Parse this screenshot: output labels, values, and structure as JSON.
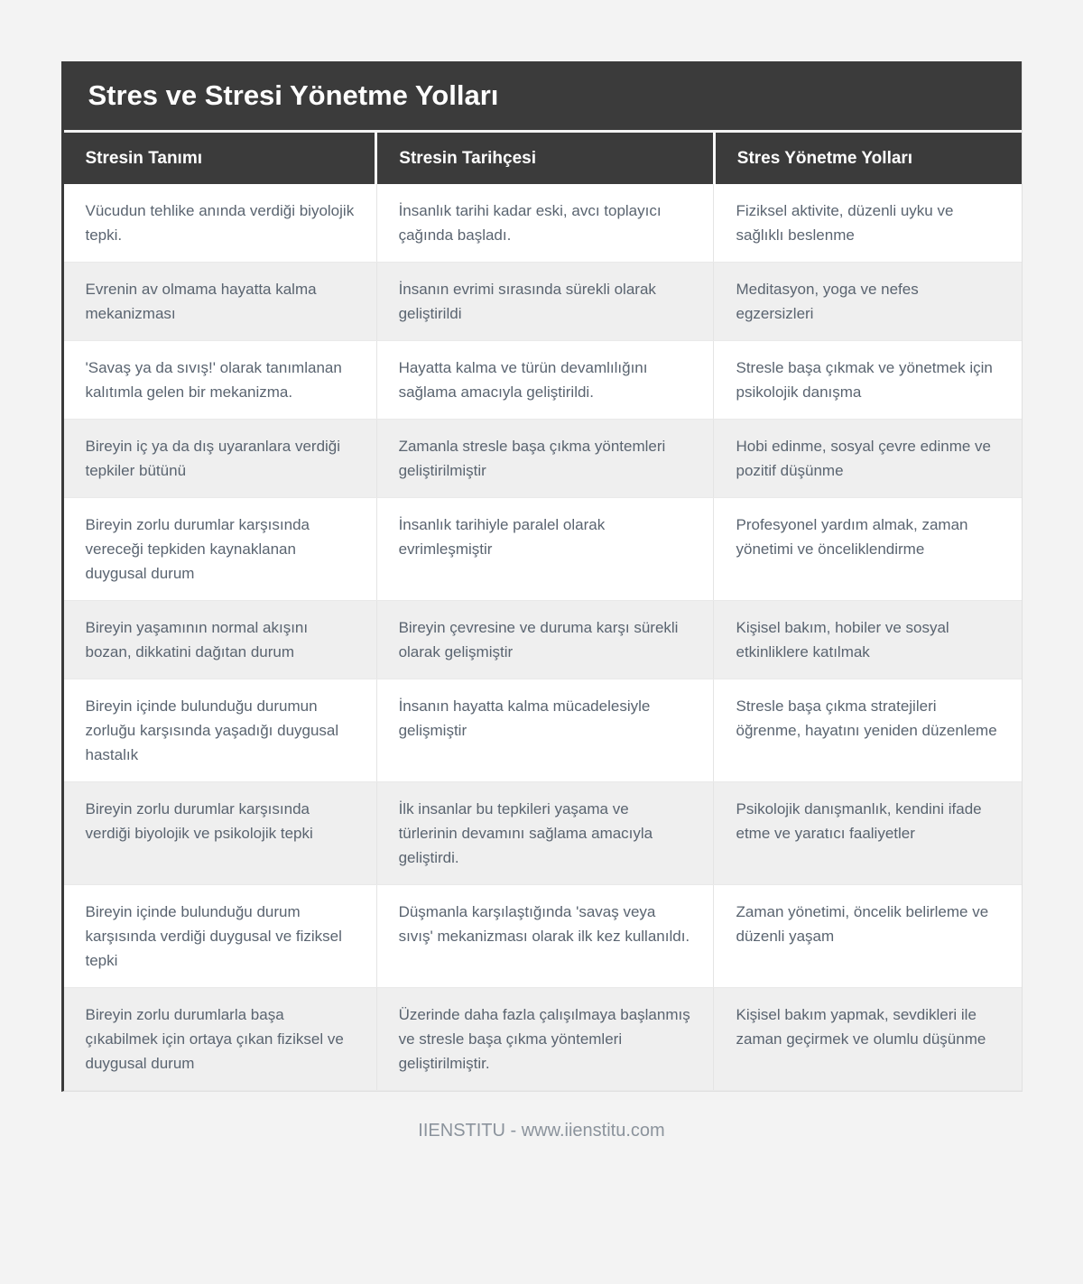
{
  "header": {
    "title": "Stres ve Stresi Yönetme Yolları"
  },
  "table": {
    "columns": [
      "Stresin Tanımı",
      "Stresin Tarihçesi",
      "Stres Yönetme Yolları"
    ],
    "rows": [
      [
        "Vücudun tehlike anında verdiği biyolojik tepki.",
        "İnsanlık tarihi kadar eski, avcı toplayıcı çağında başladı.",
        "Fiziksel aktivite, düzenli uyku ve sağlıklı beslenme"
      ],
      [
        "Evrenin av olmama hayatta kalma mekanizması",
        "İnsanın evrimi sırasında sürekli olarak geliştirildi",
        "Meditasyon, yoga ve nefes egzersizleri"
      ],
      [
        "'Savaş ya da sıvış!' olarak tanımlanan kalıtımla gelen bir mekanizma.",
        "Hayatta kalma ve türün devamlılığını sağlama amacıyla geliştirildi.",
        "Stresle başa çıkmak ve yönetmek için psikolojik danışma"
      ],
      [
        "Bireyin iç ya da dış uyaranlara verdiği tepkiler bütünü",
        "Zamanla stresle başa çıkma yöntemleri geliştirilmiştir",
        "Hobi edinme, sosyal çevre edinme ve pozitif düşünme"
      ],
      [
        "Bireyin zorlu durumlar karşısında vereceği tepkiden kaynaklanan duygusal durum",
        "İnsanlık tarihiyle paralel olarak evrimleşmiştir",
        "Profesyonel yardım almak, zaman yönetimi ve önceliklendirme"
      ],
      [
        "Bireyin yaşamının normal akışını bozan, dikkatini dağıtan durum",
        "Bireyin çevresine ve duruma karşı sürekli olarak gelişmiştir",
        "Kişisel bakım, hobiler ve sosyal etkinliklere katılmak"
      ],
      [
        "Bireyin içinde bulunduğu durumun zorluğu karşısında yaşadığı duygusal hastalık",
        "İnsanın hayatta kalma mücadelesiyle gelişmiştir",
        "Stresle başa çıkma stratejileri öğrenme, hayatını yeniden düzenleme"
      ],
      [
        "Bireyin zorlu durumlar karşısında verdiği biyolojik ve psikolojik tepki",
        "İlk insanlar bu tepkileri yaşama ve türlerinin devamını sağlama amacıyla geliştirdi.",
        "Psikolojik danışmanlık, kendini ifade etme ve yaratıcı faaliyetler"
      ],
      [
        "Bireyin içinde bulunduğu durum karşısında verdiği duygusal ve fiziksel tepki",
        "Düşmanla karşılaştığında 'savaş veya sıvış' mekanizması olarak ilk kez kullanıldı.",
        "Zaman yönetimi, öncelik belirleme ve düzenli yaşam"
      ],
      [
        "Bireyin zorlu durumlarla başa çıkabilmek için ortaya çıkan fiziksel ve duygusal durum",
        "Üzerinde daha fazla çalışılmaya başlanmış ve stresle başa çıkma yöntemleri geliştirilmiştir.",
        "Kişisel bakım yapmak, sevdikleri ile zaman geçirmek ve olumlu düşünme"
      ]
    ]
  },
  "footer": {
    "text": "IIENSTITU - www.iienstitu.com"
  },
  "colors": {
    "header_bg": "#3b3b3b",
    "row_alt_bg": "#efefef",
    "body_text": "#5a6470",
    "page_bg": "#f3f3f3"
  }
}
